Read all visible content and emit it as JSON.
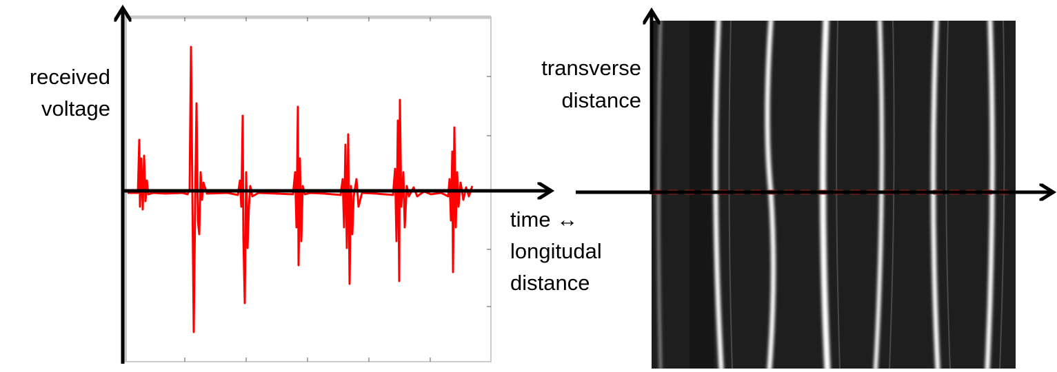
{
  "left_panel": {
    "y_axis_label": [
      "received",
      "voltage"
    ]
  },
  "right_panel": {
    "y_axis_label": [
      "transverse",
      "distance"
    ]
  },
  "shared_x_label": [
    "time ↔",
    "longitudal",
    "distance"
  ]
}
